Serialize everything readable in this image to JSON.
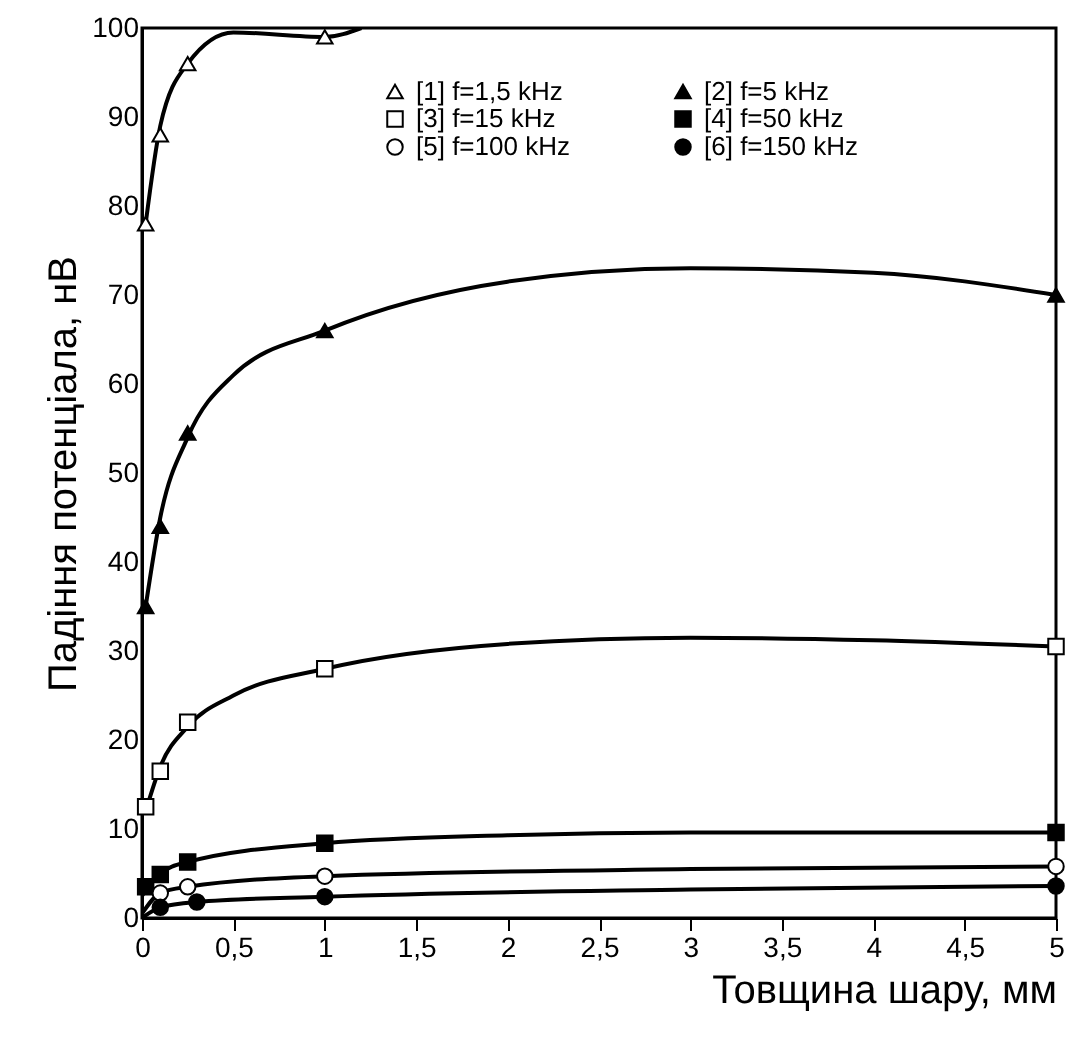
{
  "chart_data": {
    "type": "scatter",
    "xlabel": "Товщина шару, мм",
    "ylabel": "Падіння потенціала, нВ",
    "xlim": [
      0,
      5
    ],
    "ylim": [
      0,
      100
    ],
    "xticks": [
      0,
      {
        "value": 0.5,
        "label": "0,5"
      },
      1,
      {
        "value": 1.5,
        "label": "1,5"
      },
      2,
      {
        "value": 2.5,
        "label": "2,5"
      },
      3,
      {
        "value": 3.5,
        "label": "3,5"
      },
      4,
      {
        "value": 4.5,
        "label": "4,5"
      },
      5
    ],
    "yticks": [
      0,
      10,
      20,
      30,
      40,
      50,
      60,
      70,
      80,
      90,
      100
    ],
    "grid": false,
    "legend": "top right",
    "series": [
      {
        "name": "[1] f=1,5 kHz",
        "marker": "triangle",
        "color": "#ffffff",
        "x": [
          0.02,
          0.1,
          0.25,
          1
        ],
        "values": [
          78,
          88,
          96,
          99
        ]
      },
      {
        "name": "[2] f=5 kHz",
        "marker": "triangle",
        "color": "#000000",
        "x": [
          0.02,
          0.1,
          0.25,
          1,
          5
        ],
        "values": [
          35,
          44,
          54.5,
          66,
          70
        ]
      },
      {
        "name": "[3] f=15 kHz",
        "marker": "square",
        "color": "#ffffff",
        "x": [
          0.02,
          0.1,
          0.25,
          1,
          5
        ],
        "values": [
          12.5,
          16.5,
          22,
          28,
          30.5
        ]
      },
      {
        "name": "[4] f=50 kHz",
        "marker": "square",
        "color": "#000000",
        "x": [
          0.02,
          0.1,
          0.25,
          1,
          5
        ],
        "values": [
          3.5,
          4.9,
          6.3,
          8.4,
          9.6
        ]
      },
      {
        "name": "[5] f=100 kHz",
        "marker": "circle",
        "color": "#ffffff",
        "x": [
          0.1,
          0.25,
          1,
          5
        ],
        "values": [
          2.8,
          3.5,
          4.7,
          5.8
        ]
      },
      {
        "name": "[6] f=150 kHz",
        "marker": "circle",
        "color": "#000000",
        "x": [
          0.1,
          0.3,
          1,
          5
        ],
        "values": [
          1.2,
          1.8,
          2.4,
          3.6
        ]
      },
      {
        "type": "line",
        "marker": "none",
        "line_style": "solid",
        "color": "#000000",
        "x": [
          0.02,
          0.1,
          0.25,
          0.5,
          1,
          1.2
        ],
        "values": [
          78,
          89,
          96,
          99.5,
          99,
          100
        ]
      },
      {
        "type": "line",
        "marker": "none",
        "line_style": "solid",
        "color": "#000000",
        "x": [
          0.02,
          0.1,
          0.25,
          0.5,
          1,
          2,
          3,
          4,
          5
        ],
        "values": [
          35,
          45,
          54,
          61,
          66,
          71.5,
          73,
          72.5,
          70
        ]
      },
      {
        "type": "line",
        "marker": "none",
        "line_style": "solid",
        "color": "#000000",
        "x": [
          0.02,
          0.1,
          0.25,
          0.5,
          1,
          2,
          3,
          4,
          5
        ],
        "values": [
          12,
          17,
          21.5,
          25,
          28,
          30.8,
          31.5,
          31.2,
          30.5
        ]
      },
      {
        "type": "line",
        "marker": "none",
        "line_style": "solid",
        "color": "#000000",
        "x": [
          0,
          0.1,
          0.25,
          1,
          2,
          3,
          5
        ],
        "values": [
          2.5,
          5,
          6.3,
          8.4,
          9.3,
          9.6,
          9.6
        ]
      },
      {
        "type": "line",
        "marker": "none",
        "line_style": "solid",
        "color": "#000000",
        "x": [
          0,
          0.1,
          0.25,
          1,
          3,
          5
        ],
        "values": [
          0.5,
          2.8,
          3.5,
          4.7,
          5.5,
          5.8
        ]
      },
      {
        "type": "line",
        "marker": "none",
        "line_style": "solid",
        "color": "#000000",
        "x": [
          0,
          0.1,
          0.3,
          1,
          3,
          5
        ],
        "values": [
          0,
          1.2,
          1.8,
          2.4,
          3.2,
          3.6
        ]
      }
    ]
  }
}
